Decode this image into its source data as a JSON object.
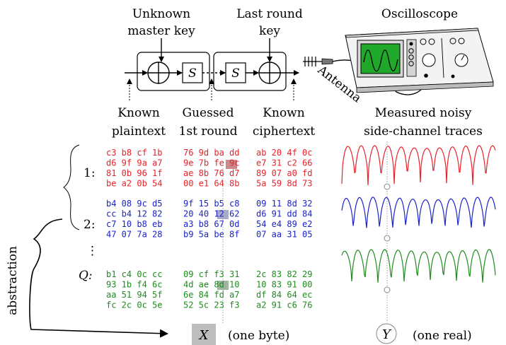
{
  "header": {
    "unknown_key": [
      "Unknown",
      "master key"
    ],
    "last_round_key": [
      "Last round",
      "key"
    ],
    "oscilloscope": "Oscilloscope",
    "antenna": "Antenna",
    "sbox": "S"
  },
  "under_labels": {
    "known_plaintext": [
      "Known",
      "plaintext"
    ],
    "guessed_first_round": [
      "Guessed",
      "1st round"
    ],
    "known_ciphertext": [
      "Known",
      "ciphertext"
    ],
    "traces": [
      "Measured noisy",
      "side-channel traces"
    ]
  },
  "rows": {
    "labels": [
      "1:",
      "2:",
      "⋮",
      "Q:"
    ],
    "groups": [
      {
        "color": "#e8222a",
        "plaintext": [
          "c3 b8 cf 1b",
          "d6 9f 9a a7",
          "81 0b 96 1f",
          "be a2 0b 54"
        ],
        "guessed": [
          "76 9d ba dd",
          "9e 7b fe 9c",
          "ae 8b 76 d7",
          "00 e1 64 8b"
        ],
        "ciphertext": [
          "ab 20 4f 0c",
          "e7 31 c2 66",
          "89 07 a0 fd",
          "5a 59 8d 73"
        ]
      },
      {
        "color": "#1a23c8",
        "plaintext": [
          "b4 08 9c d5",
          "cc b4 12 82",
          "c7 10 b8 eb",
          "47 07 7a 28"
        ],
        "guessed": [
          "9f 15 b5 c8",
          "20 40 12 62",
          "a3 b8 67 0d",
          "b9 5a be 8f"
        ],
        "ciphertext": [
          "09 11 8d 32",
          "d6 91 dd 84",
          "54 e4 89 e2",
          "07 aa 31 05"
        ]
      },
      {
        "color": "#1e8c1e",
        "plaintext": [
          "b1 c4 0c cc",
          "93 1b f4 6c",
          "aa 51 94 5f",
          "fc 2c 0c 5e"
        ],
        "guessed": [
          "09 cf f3 31",
          "4d ae 8d 10",
          "6e 84 fd a7",
          "52 5c 23 f3"
        ],
        "ciphertext": [
          "2c 83 82 29",
          "10 83 91 00",
          "df 84 64 ec",
          "a2 91 c6 76"
        ]
      }
    ]
  },
  "highlight_colors": {
    "red": "#c98a8a",
    "blue": "#a9abc8",
    "green": "#9fb59f"
  },
  "bottom": {
    "abstraction": "abstraction",
    "x_var": "X",
    "x_note": "(one byte)",
    "y_var": "Y",
    "y_note": "(one real)"
  },
  "trace_colors": [
    "#e8222a",
    "#1a23c8",
    "#1e8c1e"
  ]
}
